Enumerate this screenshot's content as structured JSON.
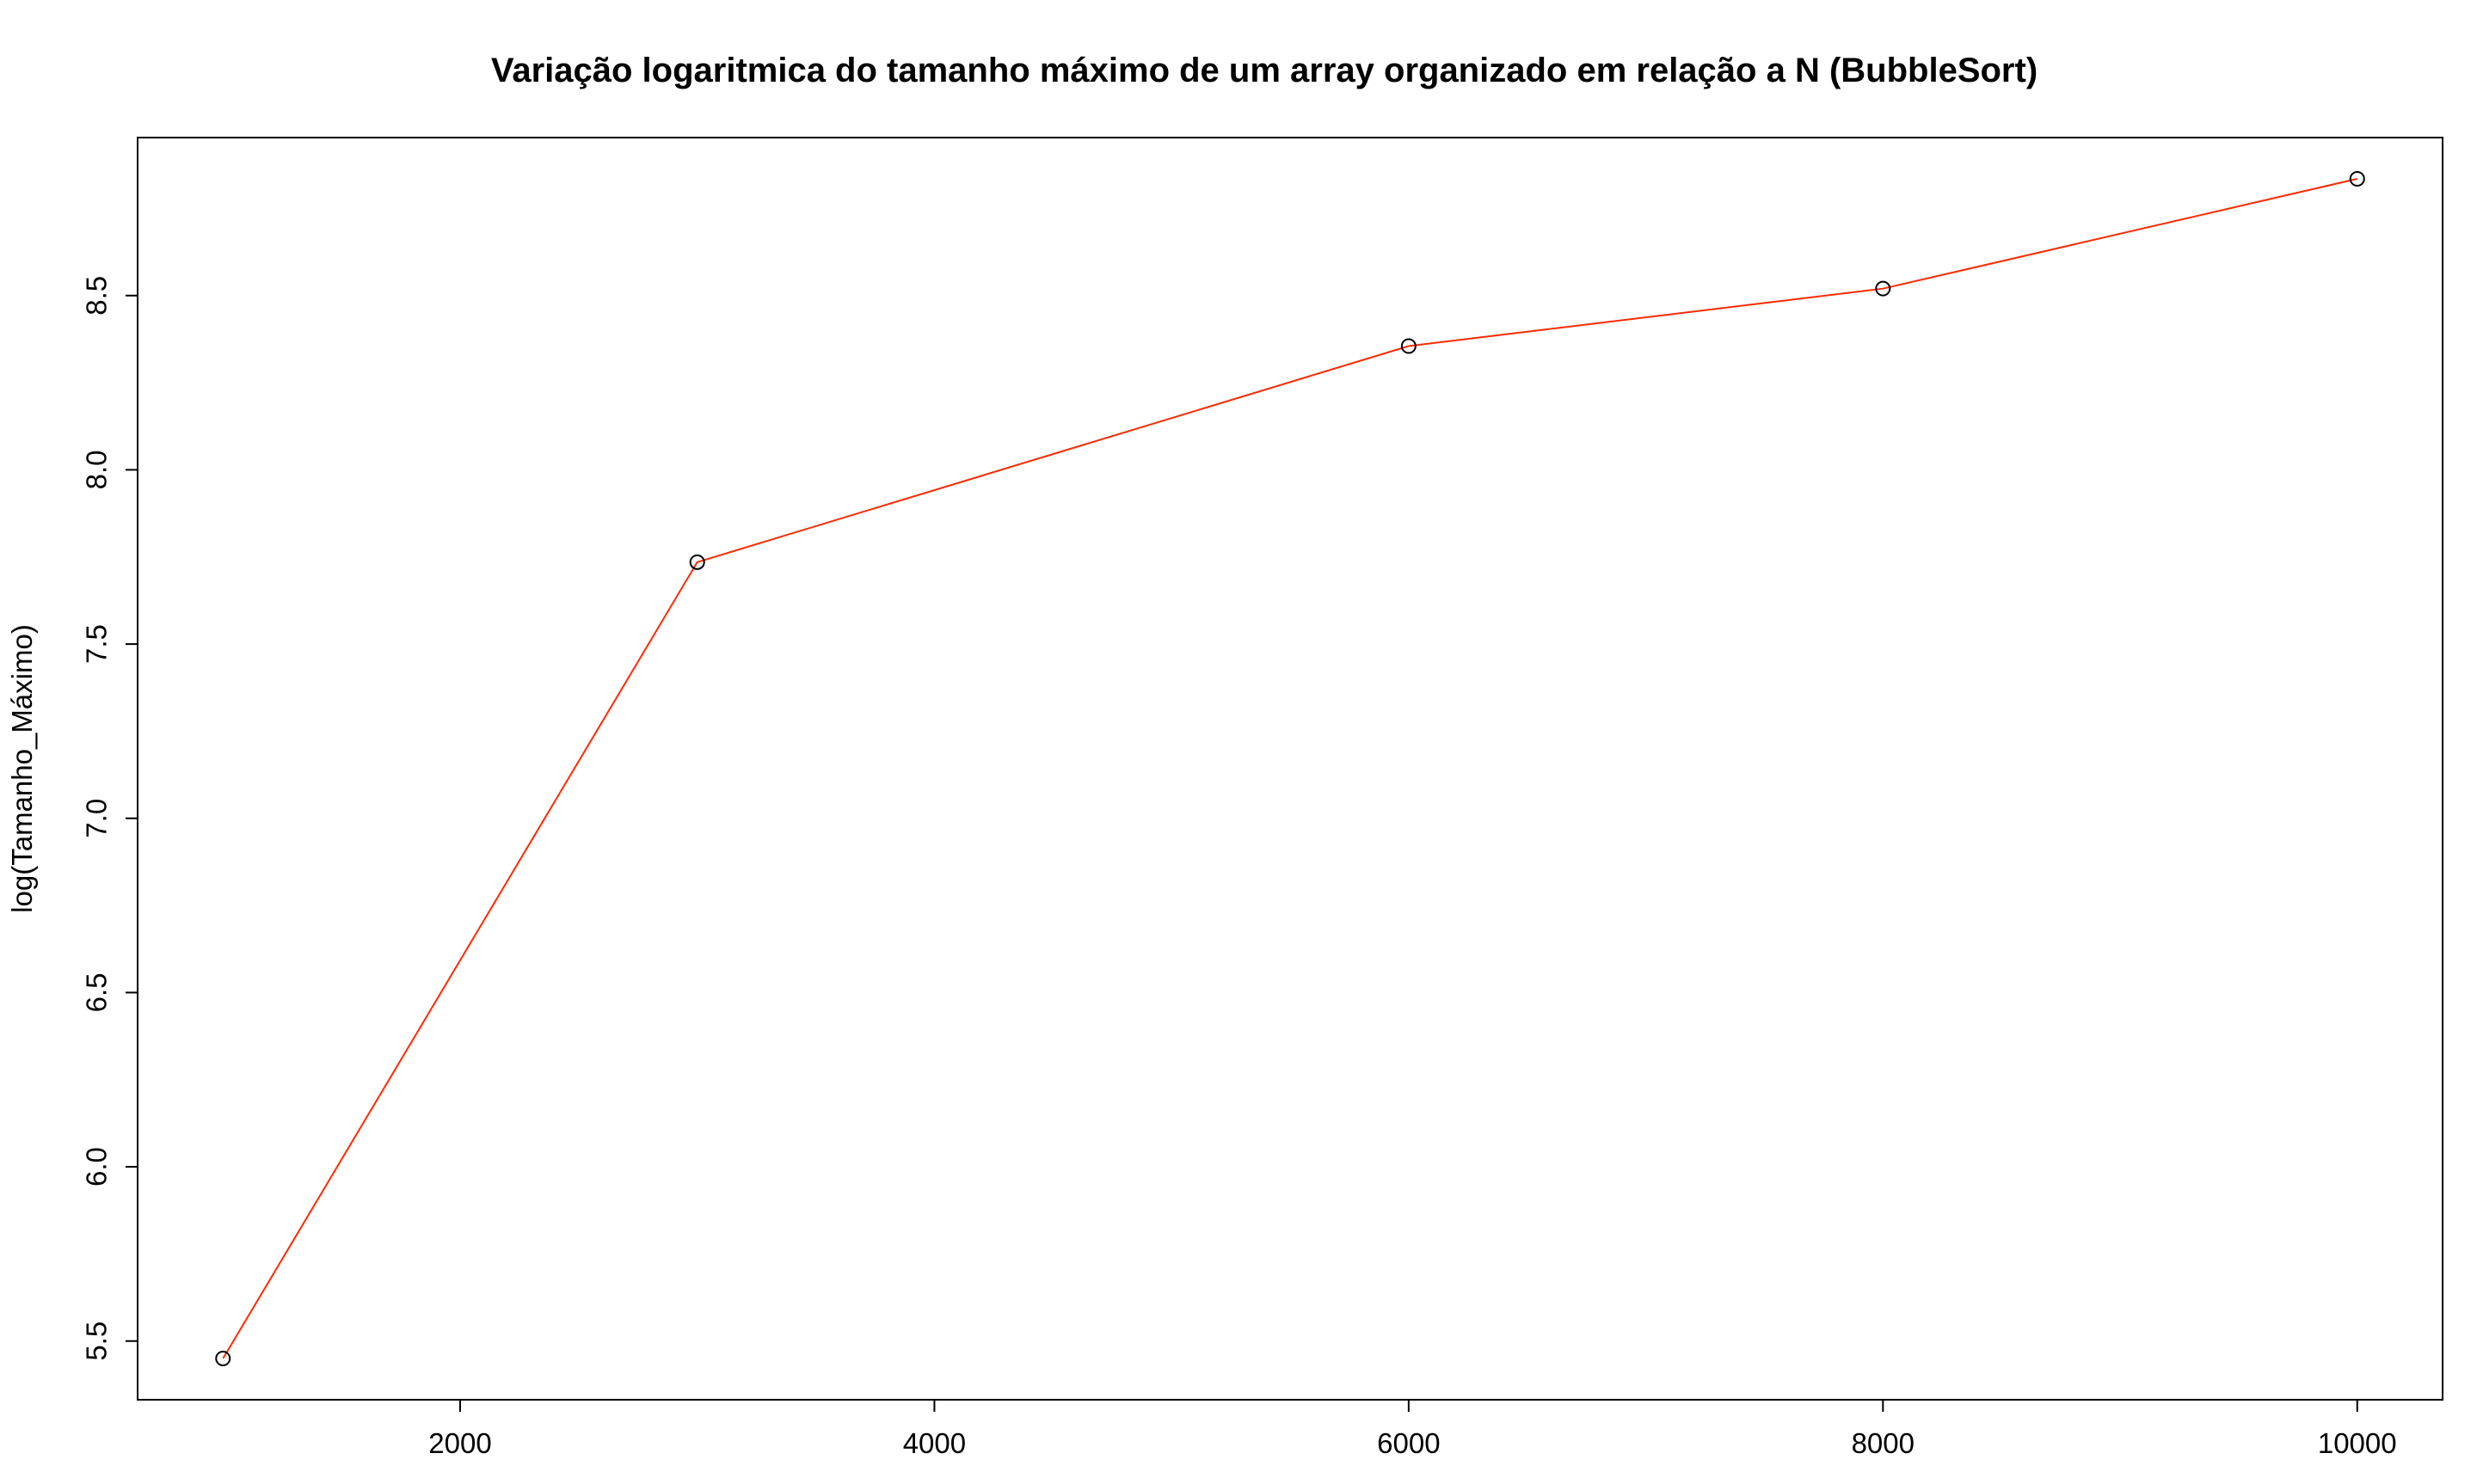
{
  "chart_data": {
    "type": "line",
    "title": "Variação logaritmica do tamanho máximo de um array organizado em relação a N (BubbleSort)",
    "xlabel": "",
    "ylabel": "log(Tamanho_Máximo)",
    "x": [
      1000,
      3000,
      6000,
      8000,
      10000
    ],
    "series": [
      {
        "values": [
          5.45,
          7.735,
          8.355,
          8.52,
          8.835
        ],
        "line_color": "#ff2a00",
        "marker": "open-circle",
        "marker_color": "#000000"
      }
    ],
    "x_ticks": [
      2000,
      4000,
      6000,
      8000,
      10000
    ],
    "x_tick_labels": [
      "2000",
      "4000",
      "6000",
      "8000",
      "10000"
    ],
    "y_ticks": [
      5.5,
      6.0,
      6.5,
      7.0,
      7.5,
      8.0,
      8.5
    ],
    "y_tick_labels": [
      "5.5",
      "6.0",
      "6.5",
      "7.0",
      "7.5",
      "8.0",
      "8.5"
    ],
    "xlim": [
      640,
      10360
    ],
    "ylim": [
      5.3316,
      8.9534
    ],
    "grid": false,
    "legend": "none"
  }
}
